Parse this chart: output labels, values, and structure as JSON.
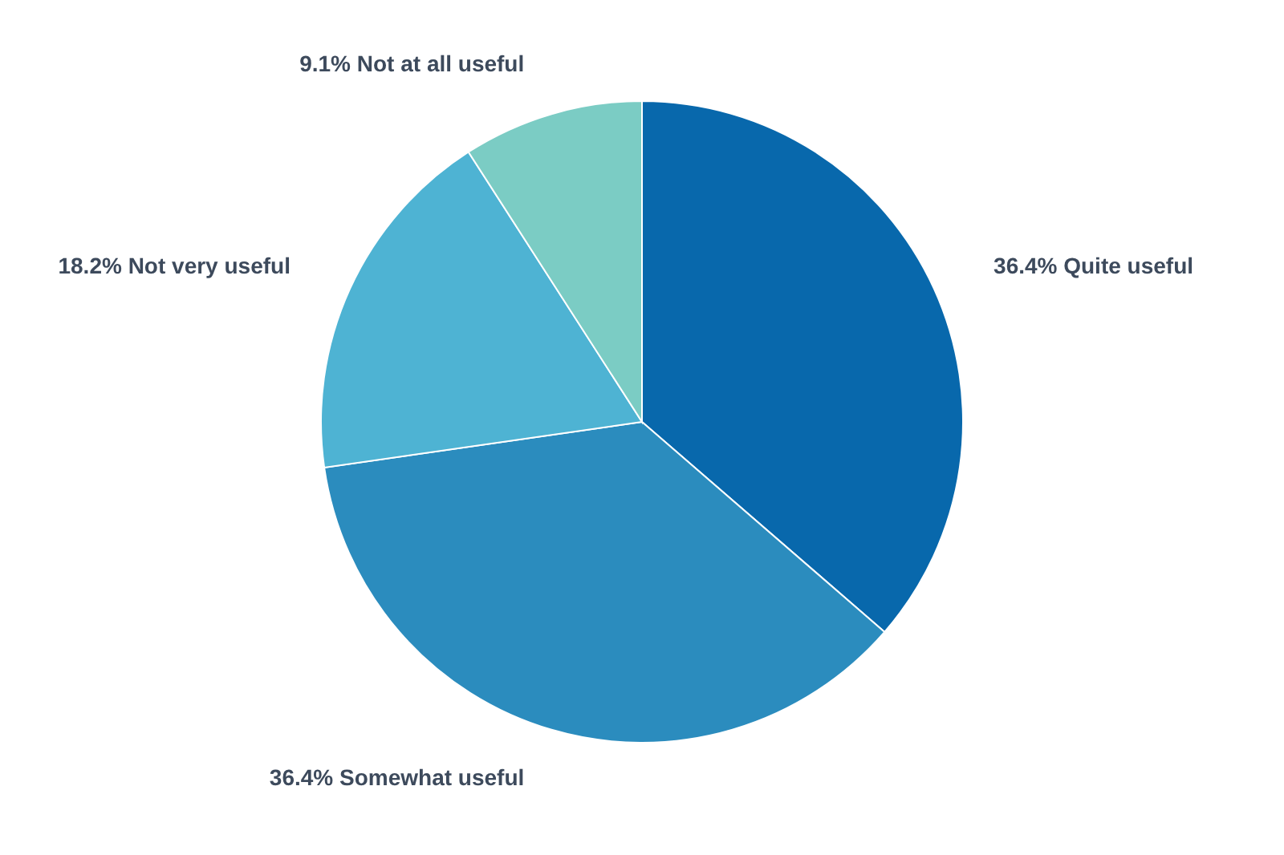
{
  "chart_data": {
    "type": "pie",
    "categories": [
      "Quite useful",
      "Somewhat useful",
      "Not very useful",
      "Not at all useful"
    ],
    "values": [
      36.4,
      36.4,
      18.2,
      9.1
    ],
    "value_labels": [
      "36.4%",
      "36.4%",
      "18.2%",
      "9.1%"
    ],
    "colors": [
      "#0868ac",
      "#2b8cbe",
      "#4eb3d3",
      "#7bccc4"
    ]
  }
}
